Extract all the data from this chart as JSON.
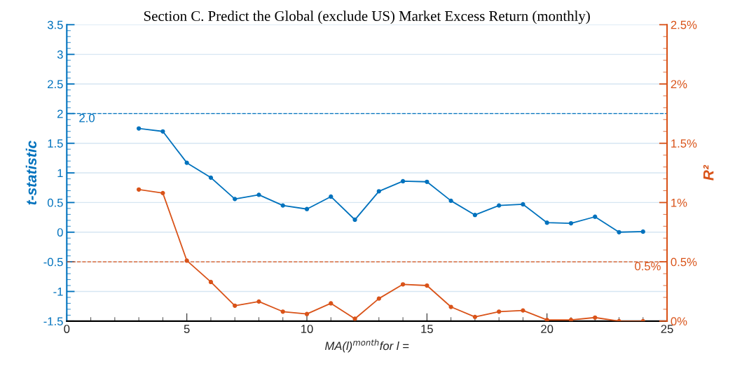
{
  "chart_data": {
    "type": "line",
    "title": "Section C. Predict the Global (exclude US) Market Excess Return (monthly)",
    "xlabel": "MA(l)$^{month}$for l =",
    "ylabel": "t-statistic",
    "y2label": "R²",
    "x": [
      3,
      4,
      5,
      6,
      7,
      8,
      9,
      10,
      11,
      12,
      13,
      14,
      15,
      16,
      17,
      18,
      19,
      20,
      21,
      22,
      23,
      24
    ],
    "series": [
      {
        "color": "#0072bd",
        "marker": "circle",
        "values": [
          1.75,
          1.7,
          1.17,
          0.92,
          0.56,
          0.63,
          0.45,
          0.39,
          0.6,
          0.21,
          0.69,
          0.86,
          0.85,
          0.53,
          0.29,
          0.45,
          0.47,
          0.16,
          0.15,
          0.26,
          0.0,
          0.01
        ]
      },
      {
        "color": "#d95319",
        "marker": "circle",
        "axis": "y2",
        "values": [
          1.11,
          1.08,
          0.51,
          0.33,
          0.13,
          0.165,
          0.08,
          0.06,
          0.15,
          0.02,
          0.19,
          0.31,
          0.3,
          0.12,
          0.035,
          0.08,
          0.09,
          0.01,
          0.01,
          0.03,
          0.0,
          0.0
        ]
      }
    ],
    "xlim": [
      0,
      25
    ],
    "xticks": [
      0,
      5,
      10,
      15,
      20,
      25
    ],
    "ylim": [
      -1.5,
      3.5
    ],
    "yticks": [
      -1.5,
      -1,
      -0.5,
      0,
      0.5,
      1,
      1.5,
      2,
      2.5,
      3,
      3.5
    ],
    "y2lim": [
      0,
      2.5
    ],
    "y2ticks": [
      {
        "value": 0,
        "label": "0%"
      },
      {
        "value": 0.5,
        "label": "0.5%"
      },
      {
        "value": 1,
        "label": "1%"
      },
      {
        "value": 1.5,
        "label": "1.5%"
      },
      {
        "value": 2,
        "label": "2%"
      },
      {
        "value": 2.5,
        "label": "2.5%"
      }
    ],
    "ref_lines": [
      {
        "axis": "y",
        "value": 2,
        "label": "2.0",
        "color": "#0072bd",
        "line_style": "dashed"
      },
      {
        "axis": "y2",
        "value": 0.5,
        "label": "0.5%",
        "color": "#d95319",
        "line_style": "dashed"
      }
    ],
    "grid": "y",
    "legend": false
  }
}
